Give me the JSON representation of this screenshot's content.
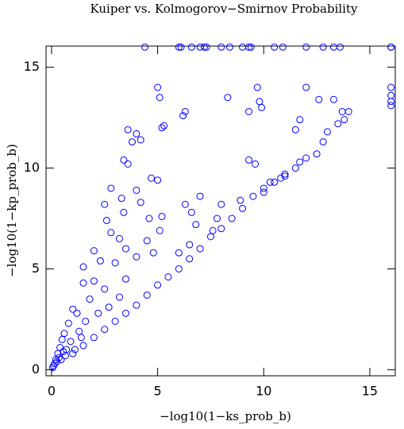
{
  "chart_data": {
    "type": "scatter",
    "title": "Kuiper vs. Kolmogorov−Smirnov Probability",
    "x_label": "−log10(1−ks_prob_b)",
    "y_label": "−log10(1−kp_prob_b)",
    "xlim": [
      -0.26,
      16.2
    ],
    "ylim": [
      -0.3,
      16.05
    ],
    "xticks": [
      0,
      5,
      10,
      15
    ],
    "yticks": [
      0,
      5,
      10,
      15
    ],
    "color": "#0000ff",
    "x": [
      4.4,
      6.0,
      6.1,
      6.6,
      7.0,
      7.2,
      7.3,
      8.0,
      8.4,
      9.0,
      9.3,
      9.4,
      10.5,
      10.9,
      12.0,
      12.8,
      13.3,
      13.6,
      16,
      16,
      16,
      16,
      16,
      16,
      14,
      13.8,
      13.5,
      13,
      12.8,
      12.5,
      12,
      11.7,
      11.5,
      11.0,
      10.8,
      10.5,
      10,
      9.5,
      9,
      8.5,
      8,
      7.5,
      7,
      6.5,
      6,
      5.5,
      5,
      4.5,
      4,
      3.5,
      3,
      2.5,
      2,
      1.5,
      1,
      5,
      5.1,
      6.3,
      6.2,
      5.3,
      5.2,
      3.6,
      4.0,
      4.2,
      3.8,
      3.4,
      3.6,
      4.7,
      5.0,
      2.8,
      4.0,
      3.3,
      2.5,
      4.2,
      3.4,
      5.2,
      2.6,
      4.6,
      2.8,
      3.2,
      5.1,
      4.5,
      2.0,
      3.5,
      4.0,
      4.8,
      1.5,
      2.3,
      3.0,
      6.0,
      6.5,
      6.3,
      6.6,
      7.0,
      6.8,
      7.6,
      7.8,
      8.0,
      9.8,
      9.7,
      9.3,
      9.9,
      8.3,
      11.7,
      12.0,
      12.6,
      13.3,
      13.7,
      11.5,
      9.6,
      9.3,
      10.3,
      11.0,
      10.0,
      8.9,
      2.0,
      1.5,
      1.0,
      1.2,
      0.8,
      1.8,
      2.5,
      3.5,
      0.5,
      0.6,
      0.3,
      0.2,
      0.1,
      0.4,
      0.7,
      0.9,
      1.3,
      1.6,
      2.2,
      2.7,
      3.2,
      0.15,
      0.25,
      0.35,
      0.05,
      0.45,
      0.55,
      0.65,
      1.1,
      1.4
    ],
    "y": [
      16,
      16,
      16,
      16,
      16,
      16,
      16,
      16,
      16,
      16,
      16,
      16,
      16,
      16,
      16,
      16,
      16,
      16,
      16,
      16,
      14,
      13.6,
      13.3,
      13.1,
      12.8,
      12.4,
      12.2,
      11.8,
      11.3,
      10.7,
      10.5,
      10.3,
      10.0,
      9.7,
      9.5,
      9.3,
      9.0,
      8.6,
      8.0,
      7.5,
      7.0,
      6.6,
      6.0,
      5.5,
      5.0,
      4.6,
      4.2,
      3.7,
      3.2,
      2.8,
      2.4,
      2.0,
      1.6,
      1.2,
      0.8,
      14,
      13.5,
      12.8,
      12.6,
      12.1,
      12.0,
      11.9,
      11.7,
      11.4,
      11.3,
      10.4,
      10.2,
      9.5,
      9.4,
      9.0,
      8.9,
      8.5,
      8.2,
      8.3,
      7.8,
      7.6,
      7.4,
      7.5,
      6.8,
      6.5,
      6.9,
      6.4,
      5.9,
      6.0,
      5.6,
      5.8,
      5.1,
      5.4,
      5.3,
      5.8,
      6.2,
      8.2,
      7.8,
      8.6,
      7.2,
      6.9,
      7.5,
      8.2,
      13.3,
      14.0,
      12.8,
      13.0,
      13.5,
      12.4,
      14.0,
      13.4,
      13.4,
      12.8,
      11.9,
      10.2,
      10.4,
      9.3,
      9.6,
      8.8,
      8.4,
      4.4,
      4.3,
      3.0,
      2.8,
      2.3,
      3.5,
      4.0,
      4.5,
      1.5,
      1.8,
      0.8,
      0.5,
      0.2,
      1.1,
      1.0,
      1.4,
      1.9,
      2.4,
      2.8,
      3.1,
      3.6,
      0.3,
      0.4,
      0.6,
      0.1,
      0.5,
      0.9,
      0.7,
      1.0,
      1.6
    ]
  }
}
